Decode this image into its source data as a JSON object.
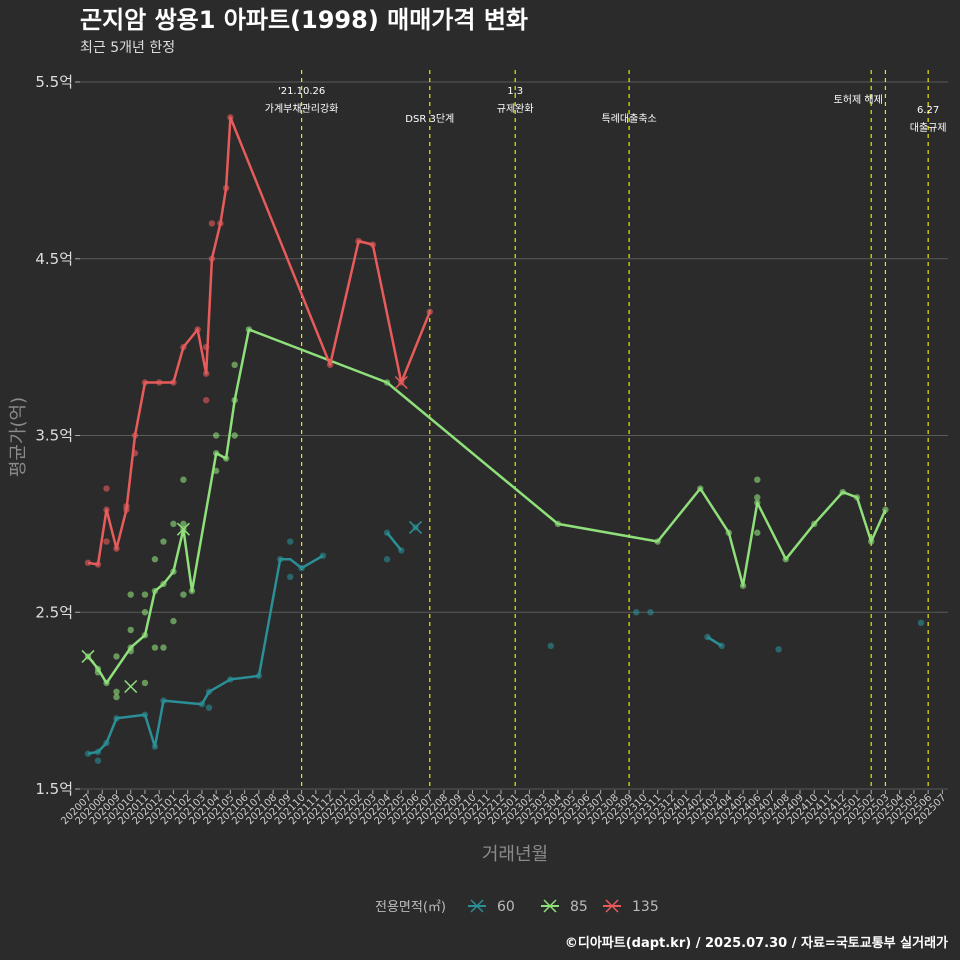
{
  "title": "곤지암 쌍용1 아파트(1998) 매매가격 변화",
  "subtitle": "최근 5개년 한정",
  "caption": "©디아파트(dapt.kr) / 2025.07.30 / 자료=국토교통부 실거래가",
  "colors": {
    "60": "#2a8f96",
    "85": "#8fe07a",
    "135": "#e85b5b",
    "event": "#e8e800",
    "grid": "#5a5a5a",
    "background": "#2b2b2b"
  },
  "chart_data": {
    "type": "line",
    "xlabel": "거래년월",
    "ylabel": "평균가(억)",
    "ylim": [
      1.5,
      5.5
    ],
    "yticks": [
      1.5,
      2.5,
      3.5,
      4.5,
      5.5
    ],
    "ytick_labels": [
      "1.5억",
      "2.5억",
      "3.5억",
      "4.5억",
      "5.5억"
    ],
    "x": [
      "202007",
      "202008",
      "202009",
      "202010",
      "202011",
      "202012",
      "202101",
      "202102",
      "202103",
      "202104",
      "202105",
      "202106",
      "202107",
      "202108",
      "202109",
      "202110",
      "202111",
      "202112",
      "202201",
      "202202",
      "202203",
      "202204",
      "202205",
      "202206",
      "202207",
      "202208",
      "202209",
      "202210",
      "202211",
      "202212",
      "202301",
      "202302",
      "202303",
      "202304",
      "202305",
      "202306",
      "202307",
      "202308",
      "202309",
      "202310",
      "202311",
      "202312",
      "202401",
      "202402",
      "202403",
      "202404",
      "202405",
      "202406",
      "202407",
      "202408",
      "202409",
      "202410",
      "202411",
      "202412",
      "202501",
      "202502",
      "202503",
      "202504",
      "202505",
      "202506",
      "202507"
    ],
    "legend_title": "전용면적(㎡)",
    "legend_position": "bottom",
    "series": [
      {
        "name": "60",
        "line_segments": [
          [
            [
              "202007.0",
              1.7
            ],
            [
              "202007.7",
              1.71
            ],
            [
              "202008.3",
              1.76
            ],
            [
              "202009.0",
              1.9
            ],
            [
              "202011.0",
              1.92
            ],
            [
              "202011.7",
              1.74
            ],
            [
              "202012.3",
              2.0
            ],
            [
              "202103.0",
              1.98
            ],
            [
              "202103.5",
              2.05
            ],
            [
              "202105.0",
              2.12
            ],
            [
              "202107.0",
              2.14
            ],
            [
              "202108.5",
              2.8
            ],
            [
              "202109.2",
              2.8
            ],
            [
              "202110.0",
              2.75
            ],
            [
              "202111.5",
              2.82
            ]
          ],
          [
            [
              "202204.0",
              2.95
            ],
            [
              "202205.0",
              2.85
            ]
          ],
          [
            [
              "202402.5",
              2.36
            ],
            [
              "202403.5",
              2.31
            ]
          ]
        ],
        "points": [
          [
            "202007.0",
            1.7
          ],
          [
            "202007.7",
            1.71
          ],
          [
            "202007.7",
            1.66
          ],
          [
            "202008.3",
            1.76
          ],
          [
            "202009.0",
            1.9
          ],
          [
            "202011.0",
            1.92
          ],
          [
            "202011.7",
            1.74
          ],
          [
            "202012.3",
            2.0
          ],
          [
            "202103.0",
            1.98
          ],
          [
            "202103.5",
            2.05
          ],
          [
            "202103.5",
            1.96
          ],
          [
            "202105.0",
            2.12
          ],
          [
            "202107.0",
            2.14
          ],
          [
            "202108.5",
            2.8
          ],
          [
            "202109.2",
            2.7
          ],
          [
            "202109.2",
            2.9
          ],
          [
            "202110.0",
            2.75
          ],
          [
            "202111.5",
            2.82
          ],
          [
            "202204.0",
            2.8
          ],
          [
            "202204.0",
            2.95
          ],
          [
            "202205.0",
            2.85
          ],
          [
            "202206.0",
            2.98
          ],
          [
            "202303.5",
            2.31
          ],
          [
            "202309.5",
            2.5
          ],
          [
            "202310.5",
            2.5
          ],
          [
            "202402.5",
            2.36
          ],
          [
            "202403.5",
            2.31
          ],
          [
            "202407.5",
            2.29
          ],
          [
            "202505.5",
            2.44
          ]
        ],
        "x_marks": [
          [
            "202206.0",
            2.98
          ]
        ]
      },
      {
        "name": "85",
        "line_segments": [
          [
            [
              "202007.0",
              2.25
            ],
            [
              "202007.7",
              2.18
            ],
            [
              "202008.3",
              2.1
            ],
            [
              "202010.0",
              2.3
            ],
            [
              "202011.0",
              2.37
            ],
            [
              "202011.7",
              2.62
            ],
            [
              "202012.3",
              2.66
            ],
            [
              "202101.0",
              2.73
            ],
            [
              "202101.7",
              2.97
            ],
            [
              "202102.3",
              2.62
            ],
            [
              "202104.0",
              3.4
            ],
            [
              "202104.7",
              3.37
            ],
            [
              "202105.3",
              3.7
            ],
            [
              "202106.3",
              4.1
            ],
            [
              "202204.0",
              3.8
            ],
            [
              "202304.0",
              3.0
            ],
            [
              "202311.0",
              2.9
            ],
            [
              "202402.0",
              3.2
            ],
            [
              "202404.0",
              2.95
            ],
            [
              "202405.0",
              2.65
            ],
            [
              "202406.0",
              3.12
            ],
            [
              "202408.0",
              2.8
            ],
            [
              "202410.0",
              3.0
            ],
            [
              "202412.0",
              3.18
            ],
            [
              "202501.0",
              3.15
            ],
            [
              "202502.0",
              2.9
            ],
            [
              "202503.0",
              3.08
            ]
          ]
        ],
        "points": [
          [
            "202007.0",
            2.25
          ],
          [
            "202007.7",
            2.18
          ],
          [
            "202007.7",
            2.16
          ],
          [
            "202008.3",
            2.1
          ],
          [
            "202009.0",
            2.05
          ],
          [
            "202009.0",
            2.02
          ],
          [
            "202009.0",
            2.25
          ],
          [
            "202010.0",
            2.3
          ],
          [
            "202010.0",
            2.28
          ],
          [
            "202010.0",
            2.4
          ],
          [
            "202010.0",
            2.6
          ],
          [
            "202011.0",
            2.37
          ],
          [
            "202011.0",
            2.5
          ],
          [
            "202011.0",
            2.6
          ],
          [
            "202011.0",
            2.1
          ],
          [
            "202011.7",
            2.62
          ],
          [
            "202011.7",
            2.8
          ],
          [
            "202011.7",
            2.3
          ],
          [
            "202012.3",
            2.66
          ],
          [
            "202012.3",
            2.9
          ],
          [
            "202012.3",
            2.3
          ],
          [
            "202101.0",
            2.73
          ],
          [
            "202101.0",
            3.0
          ],
          [
            "202101.0",
            2.45
          ],
          [
            "202101.7",
            2.97
          ],
          [
            "202101.7",
            3.0
          ],
          [
            "202101.7",
            3.25
          ],
          [
            "202101.7",
            2.6
          ],
          [
            "202102.3",
            2.62
          ],
          [
            "202104.0",
            3.4
          ],
          [
            "202104.0",
            3.5
          ],
          [
            "202104.0",
            3.3
          ],
          [
            "202104.7",
            3.37
          ],
          [
            "202105.3",
            3.7
          ],
          [
            "202105.3",
            3.5
          ],
          [
            "202105.3",
            3.9
          ],
          [
            "202106.3",
            4.1
          ],
          [
            "202204.0",
            3.8
          ],
          [
            "202304.0",
            3.0
          ],
          [
            "202311.0",
            2.9
          ],
          [
            "202402.0",
            3.2
          ],
          [
            "202404.0",
            2.95
          ],
          [
            "202405.0",
            2.65
          ],
          [
            "202406.0",
            3.12
          ],
          [
            "202406.0",
            2.95
          ],
          [
            "202406.0",
            3.15
          ],
          [
            "202406.0",
            3.25
          ],
          [
            "202408.0",
            2.8
          ],
          [
            "202410.0",
            3.0
          ],
          [
            "202412.0",
            3.18
          ],
          [
            "202501.0",
            3.15
          ],
          [
            "202502.0",
            2.9
          ],
          [
            "202503.0",
            3.08
          ]
        ],
        "x_marks": [
          [
            "202007.0",
            2.25
          ],
          [
            "202010.0",
            2.08
          ],
          [
            "202101.7",
            2.97
          ]
        ]
      },
      {
        "name": "135",
        "line_segments": [
          [
            [
              "202007.0",
              2.78
            ],
            [
              "202007.7",
              2.77
            ],
            [
              "202008.3",
              3.08
            ],
            [
              "202009.0",
              2.86
            ],
            [
              "202009.7",
              3.08
            ],
            [
              "202010.3",
              3.5
            ],
            [
              "202011.0",
              3.8
            ],
            [
              "202012.0",
              3.8
            ],
            [
              "202101.0",
              3.8
            ],
            [
              "202101.7",
              4.0
            ],
            [
              "202102.7",
              4.1
            ],
            [
              "202103.3",
              3.85
            ],
            [
              "202103.7",
              4.5
            ],
            [
              "202104.3",
              4.7
            ],
            [
              "202104.7",
              4.9
            ],
            [
              "202105.0",
              5.3
            ],
            [
              "202112.0",
              3.9
            ],
            [
              "202202.0",
              4.6
            ],
            [
              "202203.0",
              4.58
            ],
            [
              "202205.0",
              3.8
            ],
            [
              "202207.0",
              4.2
            ]
          ]
        ],
        "points": [
          [
            "202007.0",
            2.78
          ],
          [
            "202007.7",
            2.77
          ],
          [
            "202008.3",
            3.08
          ],
          [
            "202008.3",
            3.2
          ],
          [
            "202008.3",
            2.9
          ],
          [
            "202009.0",
            2.86
          ],
          [
            "202009.7",
            3.08
          ],
          [
            "202009.7",
            3.1
          ],
          [
            "202010.3",
            3.5
          ],
          [
            "202010.3",
            3.4
          ],
          [
            "202011.0",
            3.8
          ],
          [
            "202012.0",
            3.8
          ],
          [
            "202101.0",
            3.8
          ],
          [
            "202101.7",
            4.0
          ],
          [
            "202102.7",
            4.1
          ],
          [
            "202103.3",
            3.85
          ],
          [
            "202103.3",
            4.0
          ],
          [
            "202103.3",
            3.7
          ],
          [
            "202103.7",
            4.5
          ],
          [
            "202103.7",
            4.7
          ],
          [
            "202104.3",
            4.7
          ],
          [
            "202104.7",
            4.9
          ],
          [
            "202105.0",
            5.3
          ],
          [
            "202112.0",
            3.9
          ],
          [
            "202202.0",
            4.6
          ],
          [
            "202203.0",
            4.58
          ],
          [
            "202205.0",
            3.8
          ],
          [
            "202207.0",
            4.2
          ]
        ],
        "x_marks": [
          [
            "202205.0",
            3.8
          ]
        ]
      }
    ],
    "events": [
      {
        "x": "202110.0",
        "label1": "'21.10.26",
        "label2": "가계부채관리강화"
      },
      {
        "x": "202207.0",
        "label1": "",
        "label2": "DSR 3단계"
      },
      {
        "x": "202301.0",
        "label1": "1.3",
        "label2": "규제완화"
      },
      {
        "x": "202309.0",
        "label1": "",
        "label2": "특례대출축소"
      },
      {
        "x": "202502.0",
        "label1": "토허제 해제",
        "label2": ""
      },
      {
        "x": "202503.0",
        "label1": "",
        "label2": ""
      },
      {
        "x": "202506.0",
        "label1": "6.27",
        "label2": "대출규제"
      }
    ]
  }
}
